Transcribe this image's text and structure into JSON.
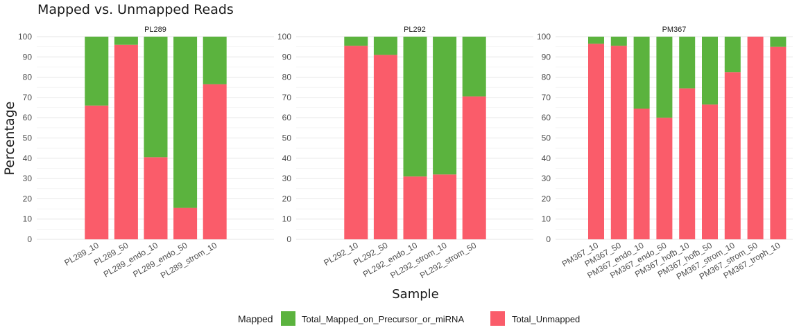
{
  "chart_data": {
    "type": "bar",
    "stacked": true,
    "title": "Mapped vs. Unmapped Reads",
    "xlabel": "Sample",
    "ylabel": "Percentage",
    "ylim": [
      0,
      100
    ],
    "yticks": [
      0,
      10,
      20,
      30,
      40,
      50,
      60,
      70,
      80,
      90,
      100
    ],
    "grid": true,
    "legend": {
      "title": "Mapped",
      "position": "bottom",
      "entries": [
        {
          "name": "Total_Mapped_on_Precursor_or_miRNA",
          "color": "#5BB33E"
        },
        {
          "name": "Total_Unmapped",
          "color": "#FA5C6A"
        }
      ]
    },
    "panels": [
      {
        "title": "PL289",
        "categories": [
          "PL289_10",
          "PL289_50",
          "PL289_endo_10",
          "PL289_endo_50",
          "PL289_strom_10"
        ],
        "series": [
          {
            "name": "Total_Unmapped",
            "values": [
              66,
              96,
              40.5,
              15.5,
              76.5
            ]
          },
          {
            "name": "Total_Mapped_on_Precursor_or_miRNA",
            "values": [
              34,
              4,
              59.5,
              84.5,
              23.5
            ]
          }
        ]
      },
      {
        "title": "PL292",
        "categories": [
          "PL292_10",
          "PL292_50",
          "PL292_endo_10",
          "PL292_strom_10",
          "PL292_strom_50"
        ],
        "series": [
          {
            "name": "Total_Unmapped",
            "values": [
              95.5,
              91,
              31,
              32,
              70.5
            ]
          },
          {
            "name": "Total_Mapped_on_Precursor_or_miRNA",
            "values": [
              4.5,
              9,
              69,
              68,
              29.5
            ]
          }
        ]
      },
      {
        "title": "PM367",
        "categories": [
          "PM367_10",
          "PM367_50",
          "PM367_endo_10",
          "PM367_endo_50",
          "PM367_hofb_10",
          "PM367_hofb_50",
          "PM367_strom_10",
          "PM367_strom_50",
          "PM367_troph_10"
        ],
        "series": [
          {
            "name": "Total_Unmapped",
            "values": [
              96.5,
              95.5,
              64.5,
              60,
              74.5,
              66.5,
              82.5,
              100,
              95
            ]
          },
          {
            "name": "Total_Mapped_on_Precursor_or_miRNA",
            "values": [
              3.5,
              4.5,
              35.5,
              40,
              25.5,
              33.5,
              17.5,
              0,
              5
            ]
          }
        ]
      }
    ]
  }
}
